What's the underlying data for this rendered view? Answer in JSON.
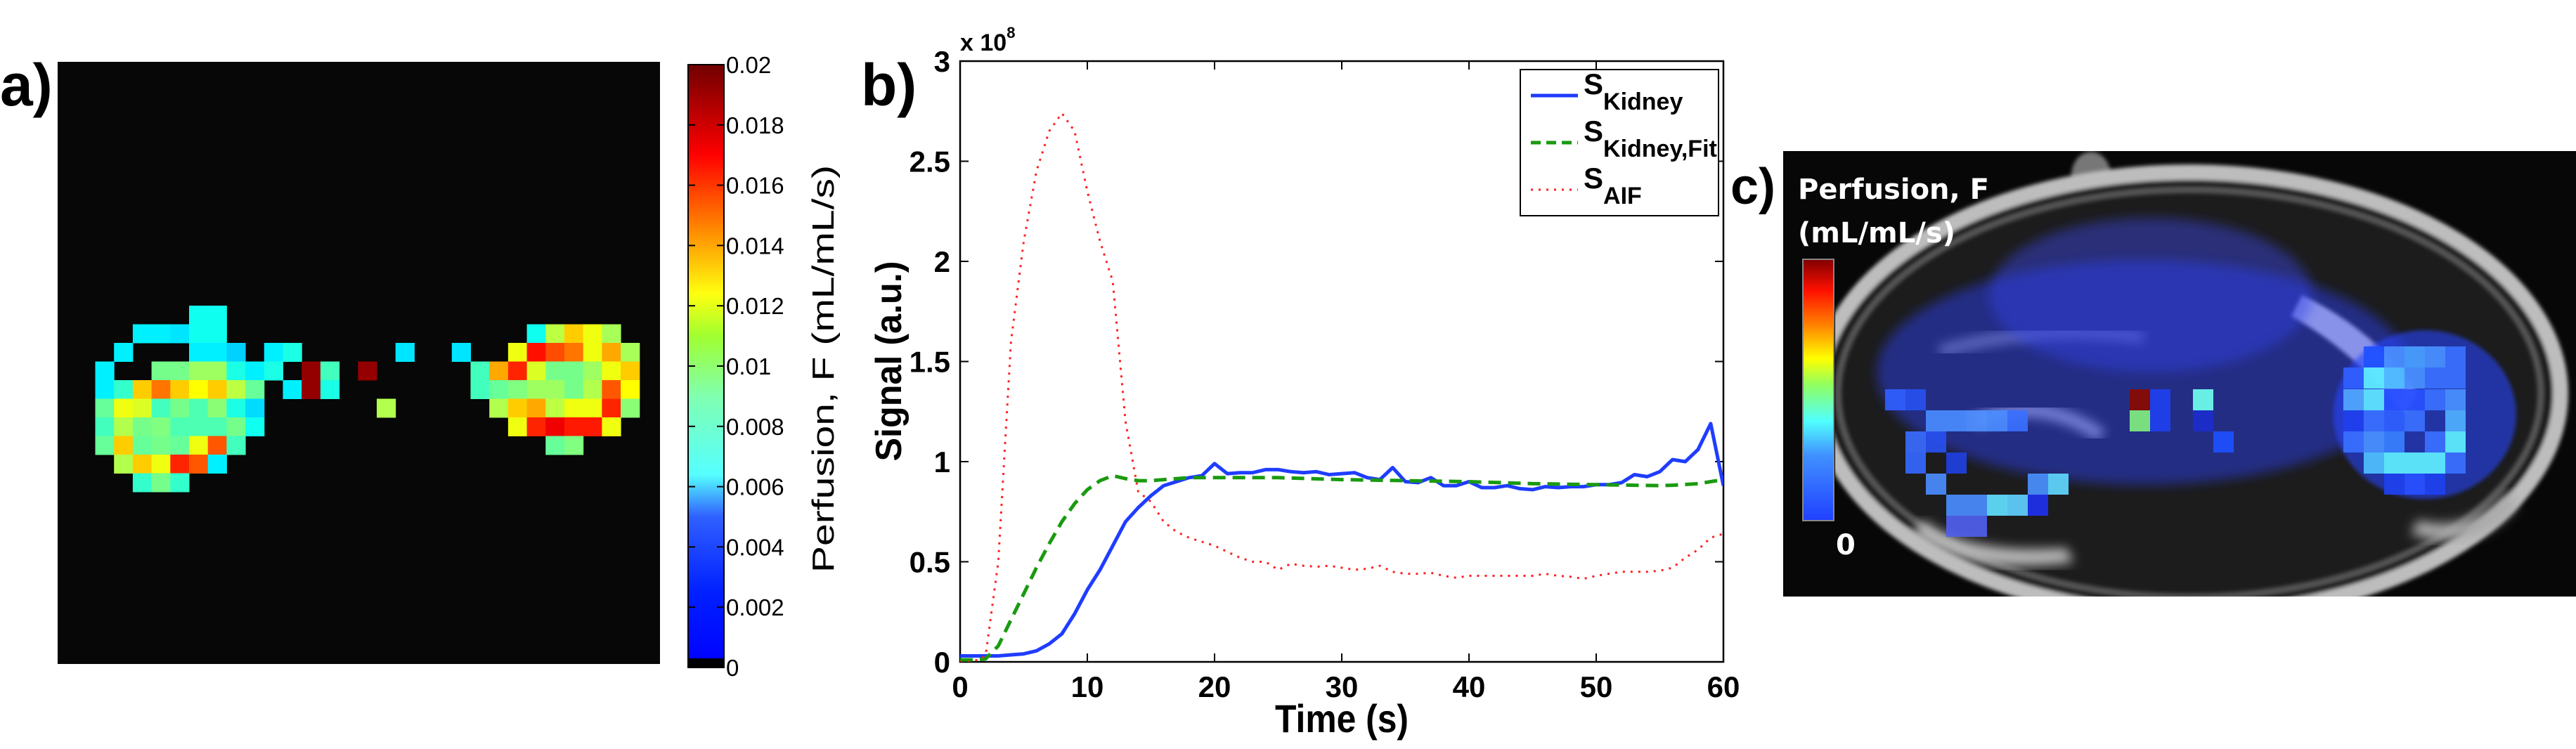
{
  "panel_labels": {
    "a": "a)",
    "b": "b)",
    "c": "c)"
  },
  "panel_a": {
    "colorbar": {
      "label": "Perfusion, F (mL/mL/s)",
      "range": [
        0,
        0.02
      ],
      "ticks": [
        "0",
        "0.002",
        "0.004",
        "0.006",
        "0.008",
        "0.01",
        "0.012",
        "0.014",
        "0.016",
        "0.018",
        "0.02"
      ]
    },
    "perfusion_map": {
      "type": "heatmap",
      "units": "mL/mL/s",
      "background_value": 0,
      "cells": [
        [
          0,
          5,
          0.0078
        ],
        [
          0,
          6,
          0.0078
        ],
        [
          1,
          2,
          0.0072
        ],
        [
          1,
          3,
          0.0072
        ],
        [
          1,
          4,
          0.007
        ],
        [
          1,
          5,
          0.0078
        ],
        [
          1,
          6,
          0.0078
        ],
        [
          1,
          23,
          0.0078
        ],
        [
          1,
          24,
          0.0112
        ],
        [
          1,
          25,
          0.0135
        ],
        [
          1,
          26,
          0.0122
        ],
        [
          1,
          27,
          0.0108
        ],
        [
          2,
          1,
          0.0072
        ],
        [
          2,
          5,
          0.0072
        ],
        [
          2,
          6,
          0.0072
        ],
        [
          2,
          7,
          0.0066
        ],
        [
          2,
          9,
          0.0072
        ],
        [
          2,
          10,
          0.008
        ],
        [
          2,
          16,
          0.007
        ],
        [
          2,
          19,
          0.007
        ],
        [
          2,
          22,
          0.0122
        ],
        [
          2,
          23,
          0.0172
        ],
        [
          2,
          24,
          0.016
        ],
        [
          2,
          25,
          0.0152
        ],
        [
          2,
          26,
          0.0122
        ],
        [
          2,
          27,
          0.0142
        ],
        [
          2,
          28,
          0.0108
        ],
        [
          3,
          0,
          0.0072
        ],
        [
          3,
          3,
          0.0098
        ],
        [
          3,
          4,
          0.0098
        ],
        [
          3,
          5,
          0.0106
        ],
        [
          3,
          6,
          0.0106
        ],
        [
          3,
          7,
          0.008
        ],
        [
          3,
          8,
          0.0072
        ],
        [
          3,
          9,
          0.008
        ],
        [
          3,
          11,
          0.0196
        ],
        [
          3,
          12,
          0.0088
        ],
        [
          3,
          14,
          0.0196
        ],
        [
          3,
          20,
          0.0088
        ],
        [
          3,
          21,
          0.0142
        ],
        [
          3,
          22,
          0.0168
        ],
        [
          3,
          23,
          0.0118
        ],
        [
          3,
          24,
          0.0098
        ],
        [
          3,
          25,
          0.0098
        ],
        [
          3,
          26,
          0.0106
        ],
        [
          3,
          27,
          0.0122
        ],
        [
          3,
          28,
          0.0135
        ],
        [
          4,
          0,
          0.0072
        ],
        [
          4,
          1,
          0.0085
        ],
        [
          4,
          2,
          0.0135
        ],
        [
          4,
          3,
          0.0152
        ],
        [
          4,
          4,
          0.0135
        ],
        [
          4,
          5,
          0.0125
        ],
        [
          4,
          6,
          0.0135
        ],
        [
          4,
          7,
          0.0112
        ],
        [
          4,
          8,
          0.0095
        ],
        [
          4,
          10,
          0.0072
        ],
        [
          4,
          11,
          0.0196
        ],
        [
          4,
          12,
          0.008
        ],
        [
          4,
          20,
          0.0088
        ],
        [
          4,
          21,
          0.0095
        ],
        [
          4,
          22,
          0.01
        ],
        [
          4,
          23,
          0.0106
        ],
        [
          4,
          24,
          0.0106
        ],
        [
          4,
          25,
          0.0098
        ],
        [
          4,
          26,
          0.011
        ],
        [
          4,
          27,
          0.0158
        ],
        [
          4,
          28,
          0.0125
        ],
        [
          5,
          0,
          0.0095
        ],
        [
          5,
          1,
          0.0122
        ],
        [
          5,
          2,
          0.0118
        ],
        [
          5,
          3,
          0.0088
        ],
        [
          5,
          4,
          0.0098
        ],
        [
          5,
          5,
          0.009
        ],
        [
          5,
          6,
          0.0102
        ],
        [
          5,
          7,
          0.008
        ],
        [
          5,
          8,
          0.0068
        ],
        [
          5,
          15,
          0.011
        ],
        [
          5,
          21,
          0.011
        ],
        [
          5,
          22,
          0.0135
        ],
        [
          5,
          23,
          0.0142
        ],
        [
          5,
          24,
          0.0112
        ],
        [
          5,
          25,
          0.0122
        ],
        [
          5,
          26,
          0.0122
        ],
        [
          5,
          27,
          0.0168
        ],
        [
          5,
          28,
          0.0102
        ],
        [
          6,
          0,
          0.0088
        ],
        [
          6,
          1,
          0.011
        ],
        [
          6,
          2,
          0.0098
        ],
        [
          6,
          3,
          0.01
        ],
        [
          6,
          4,
          0.009
        ],
        [
          6,
          5,
          0.009
        ],
        [
          6,
          6,
          0.009
        ],
        [
          6,
          7,
          0.0098
        ],
        [
          6,
          8,
          0.0078
        ],
        [
          6,
          22,
          0.0122
        ],
        [
          6,
          23,
          0.0168
        ],
        [
          6,
          24,
          0.0178
        ],
        [
          6,
          25,
          0.017
        ],
        [
          6,
          26,
          0.017
        ],
        [
          6,
          27,
          0.0122
        ],
        [
          7,
          0,
          0.0095
        ],
        [
          7,
          1,
          0.0135
        ],
        [
          7,
          2,
          0.0095
        ],
        [
          7,
          3,
          0.0098
        ],
        [
          7,
          4,
          0.0095
        ],
        [
          7,
          5,
          0.0122
        ],
        [
          7,
          6,
          0.0158
        ],
        [
          7,
          7,
          0.0088
        ],
        [
          7,
          24,
          0.0095
        ],
        [
          7,
          25,
          0.01
        ],
        [
          8,
          1,
          0.011
        ],
        [
          8,
          2,
          0.0135
        ],
        [
          8,
          3,
          0.0122
        ],
        [
          8,
          4,
          0.0168
        ],
        [
          8,
          5,
          0.0158
        ],
        [
          8,
          6,
          0.0072
        ],
        [
          9,
          2,
          0.0085
        ],
        [
          9,
          3,
          0.0098
        ],
        [
          9,
          4,
          0.0085
        ]
      ]
    }
  },
  "chart_data": {
    "type": "line",
    "title": "",
    "xlabel": "Time (s)",
    "ylabel": "Signal (a.u.)",
    "y_multiplier_label": {
      "base": "x 10",
      "exponent": "8"
    },
    "xlim": [
      0,
      60
    ],
    "ylim": [
      0,
      3
    ],
    "xticks": [
      "0",
      "10",
      "20",
      "30",
      "40",
      "50",
      "60"
    ],
    "yticks": [
      "0",
      "0.5",
      "1",
      "1.5",
      "2",
      "2.5",
      "3"
    ],
    "grid": false,
    "legend_position": "top-right",
    "x": [
      0,
      1,
      2,
      3,
      4,
      5,
      6,
      7,
      8,
      9,
      10,
      11,
      12,
      13,
      14,
      15,
      16,
      17,
      18,
      19,
      20,
      21,
      22,
      23,
      24,
      25,
      26,
      27,
      28,
      29,
      30,
      31,
      32,
      33,
      34,
      35,
      36,
      37,
      38,
      39,
      40,
      41,
      42,
      43,
      44,
      45,
      46,
      47,
      48,
      49,
      50,
      51,
      52,
      53,
      54,
      55,
      56,
      57,
      58,
      59,
      60
    ],
    "series": [
      {
        "name": "S",
        "subscript": "Kidney",
        "style": "solid",
        "color": "#1f3dff",
        "values": [
          0.03,
          0.03,
          0.03,
          0.03,
          0.035,
          0.04,
          0.055,
          0.09,
          0.14,
          0.24,
          0.36,
          0.46,
          0.58,
          0.7,
          0.77,
          0.83,
          0.88,
          0.9,
          0.92,
          0.93,
          0.99,
          0.94,
          0.945,
          0.945,
          0.96,
          0.96,
          0.95,
          0.945,
          0.95,
          0.935,
          0.94,
          0.945,
          0.92,
          0.91,
          0.97,
          0.9,
          0.895,
          0.92,
          0.88,
          0.88,
          0.9,
          0.87,
          0.87,
          0.88,
          0.865,
          0.86,
          0.875,
          0.87,
          0.875,
          0.875,
          0.885,
          0.885,
          0.895,
          0.935,
          0.925,
          0.95,
          1.01,
          1.0,
          1.06,
          1.19,
          0.88
        ]
      },
      {
        "name": "S",
        "subscript": "Kidney,Fit",
        "style": "dashed",
        "color": "#1a9a10",
        "values": [
          0.01,
          0.01,
          0.015,
          0.08,
          0.21,
          0.34,
          0.47,
          0.59,
          0.7,
          0.79,
          0.86,
          0.905,
          0.93,
          0.915,
          0.905,
          0.905,
          0.91,
          0.915,
          0.92,
          0.92,
          0.92,
          0.92,
          0.92,
          0.92,
          0.92,
          0.92,
          0.918,
          0.916,
          0.914,
          0.912,
          0.91,
          0.909,
          0.908,
          0.907,
          0.906,
          0.905,
          0.904,
          0.903,
          0.902,
          0.901,
          0.9,
          0.898,
          0.896,
          0.894,
          0.892,
          0.89,
          0.889,
          0.888,
          0.887,
          0.886,
          0.885,
          0.884,
          0.883,
          0.882,
          0.881,
          0.88,
          0.882,
          0.886,
          0.89,
          0.9,
          0.91
        ]
      },
      {
        "name": "S",
        "subscript": "AIF",
        "style": "dotted",
        "color": "#ff2020",
        "values": [
          0.0,
          0.0,
          0.03,
          0.5,
          1.6,
          2.1,
          2.45,
          2.65,
          2.74,
          2.65,
          2.35,
          2.1,
          1.9,
          1.2,
          0.85,
          0.8,
          0.7,
          0.65,
          0.62,
          0.6,
          0.58,
          0.55,
          0.52,
          0.5,
          0.5,
          0.46,
          0.49,
          0.48,
          0.475,
          0.48,
          0.47,
          0.46,
          0.465,
          0.48,
          0.45,
          0.44,
          0.44,
          0.445,
          0.43,
          0.42,
          0.43,
          0.43,
          0.43,
          0.43,
          0.43,
          0.43,
          0.44,
          0.43,
          0.425,
          0.415,
          0.43,
          0.44,
          0.45,
          0.45,
          0.45,
          0.455,
          0.47,
          0.52,
          0.56,
          0.62,
          0.64
        ]
      }
    ]
  },
  "panel_c": {
    "title_line1": "Perfusion, F",
    "title_line2": "(mL/mL/s)",
    "colorbar_min_label": "0"
  }
}
